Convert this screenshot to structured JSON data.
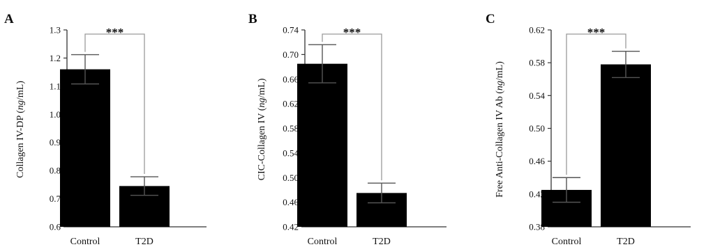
{
  "colors": {
    "bar": "#000000",
    "axis": "#333333",
    "bracket": "#9a9a9a",
    "text": "#111111"
  },
  "chart_data": [
    {
      "type": "bar",
      "panel": "A",
      "categories": [
        "Control",
        "T2D"
      ],
      "values": [
        1.16,
        0.745
      ],
      "errors": [
        0.052,
        0.033
      ],
      "ylabel_main": "Collagen IV-DP (",
      "ylabel_unit": "ng",
      "ylabel_end": "/mL)",
      "ylim": [
        0.6,
        1.3
      ],
      "yticks": [
        0.6,
        0.7,
        0.8,
        0.9,
        1.0,
        1.1,
        1.2,
        1.3
      ],
      "ytick_labels": [
        "0.6",
        "0.7",
        "0.8",
        "0.9",
        "1.0",
        "1.1",
        "1.2",
        "1.3"
      ],
      "significance": "***",
      "grid": false
    },
    {
      "type": "bar",
      "panel": "B",
      "categories": [
        "Control",
        "T2D"
      ],
      "values": [
        0.685,
        0.475
      ],
      "errors": [
        0.031,
        0.016
      ],
      "ylabel_main": "CIC-Collagen IV (",
      "ylabel_unit": "ng",
      "ylabel_end": "/mL)",
      "ylim": [
        0.42,
        0.74
      ],
      "yticks": [
        0.42,
        0.46,
        0.5,
        0.54,
        0.58,
        0.62,
        0.66,
        0.7,
        0.74
      ],
      "ytick_labels": [
        "0.42",
        "0.46",
        "0.50",
        "0.54",
        "0.58",
        "0.62",
        "0.66",
        "0.70",
        "0.74"
      ],
      "significance": "***",
      "grid": false
    },
    {
      "type": "bar",
      "panel": "C",
      "categories": [
        "Control",
        "T2D"
      ],
      "values": [
        0.425,
        0.578
      ],
      "errors": [
        0.015,
        0.016
      ],
      "ylabel_main": "Free Anti-Collagen IV Ab (",
      "ylabel_unit": "ng",
      "ylabel_end": "/mL)",
      "ylim": [
        0.38,
        0.62
      ],
      "yticks": [
        0.38,
        0.42,
        0.46,
        0.5,
        0.54,
        0.58,
        0.62
      ],
      "ytick_labels": [
        "0.38",
        "0.42",
        "0.46",
        "0.50",
        "0.54",
        "0.58",
        "0.62"
      ],
      "significance": "***",
      "grid": false
    }
  ]
}
